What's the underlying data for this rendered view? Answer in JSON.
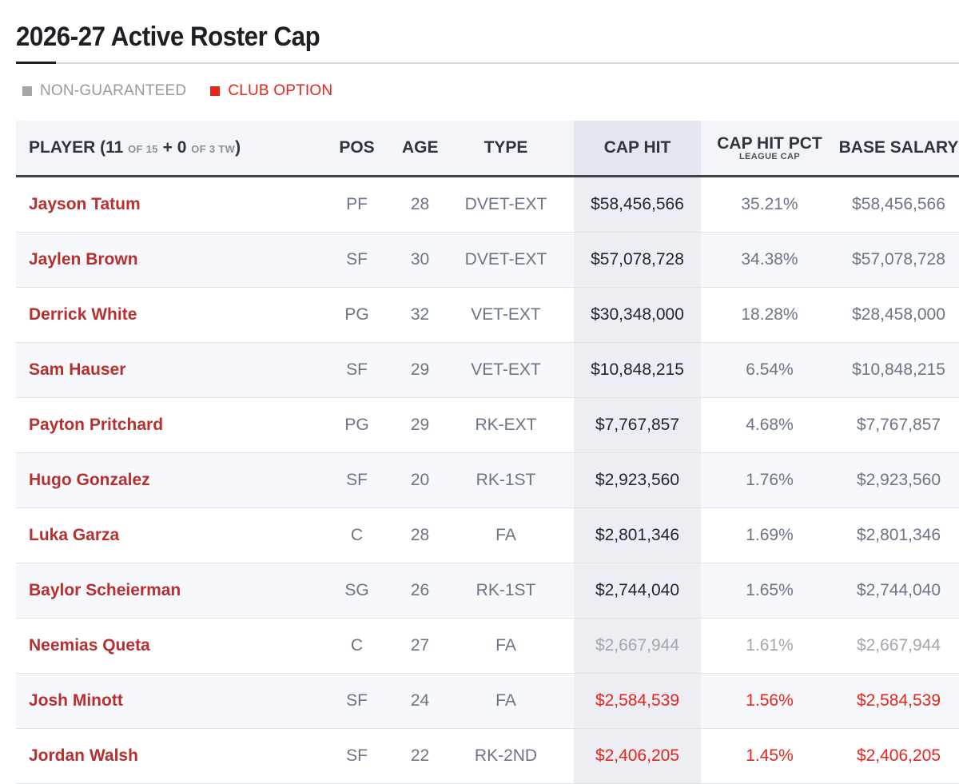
{
  "page_title": "2026-27 Active Roster Cap",
  "legend": {
    "non_guaranteed": "NON-GUARANTEED",
    "club_option": "CLUB OPTION"
  },
  "colors": {
    "player_name": "#b72f2f",
    "club_option": "#e2261c",
    "non_guaranteed": "#a3a7ad",
    "header_rule": "#3a4453"
  },
  "table": {
    "headers": {
      "player_prefix": "PLAYER (",
      "active_count": "11",
      "active_of": "OF 15",
      "plus": "+",
      "tw_count": "0",
      "tw_of": "OF 3 TW",
      "player_suffix": ")",
      "pos": "POS",
      "age": "AGE",
      "type": "TYPE",
      "cap_hit": "CAP HIT",
      "cap_hit_pct": "CAP HIT PCT",
      "cap_hit_pct_sub": "LEAGUE CAP",
      "base_salary": "BASE SALARY"
    },
    "rows": [
      {
        "player": "Jayson Tatum",
        "pos": "PF",
        "age": "28",
        "type": "DVET-EXT",
        "cap_hit": "$58,456,566",
        "pct": "35.21%",
        "base": "$58,456,566",
        "status": ""
      },
      {
        "player": "Jaylen Brown",
        "pos": "SF",
        "age": "30",
        "type": "DVET-EXT",
        "cap_hit": "$57,078,728",
        "pct": "34.38%",
        "base": "$57,078,728",
        "status": ""
      },
      {
        "player": "Derrick White",
        "pos": "PG",
        "age": "32",
        "type": "VET-EXT",
        "cap_hit": "$30,348,000",
        "pct": "18.28%",
        "base": "$28,458,000",
        "status": ""
      },
      {
        "player": "Sam Hauser",
        "pos": "SF",
        "age": "29",
        "type": "VET-EXT",
        "cap_hit": "$10,848,215",
        "pct": "6.54%",
        "base": "$10,848,215",
        "status": ""
      },
      {
        "player": "Payton Pritchard",
        "pos": "PG",
        "age": "29",
        "type": "RK-EXT",
        "cap_hit": "$7,767,857",
        "pct": "4.68%",
        "base": "$7,767,857",
        "status": ""
      },
      {
        "player": "Hugo Gonzalez",
        "pos": "SF",
        "age": "20",
        "type": "RK-1ST",
        "cap_hit": "$2,923,560",
        "pct": "1.76%",
        "base": "$2,923,560",
        "status": ""
      },
      {
        "player": "Luka Garza",
        "pos": "C",
        "age": "28",
        "type": "FA",
        "cap_hit": "$2,801,346",
        "pct": "1.69%",
        "base": "$2,801,346",
        "status": ""
      },
      {
        "player": "Baylor Scheierman",
        "pos": "SG",
        "age": "26",
        "type": "RK-1ST",
        "cap_hit": "$2,744,040",
        "pct": "1.65%",
        "base": "$2,744,040",
        "status": ""
      },
      {
        "player": "Neemias Queta",
        "pos": "C",
        "age": "27",
        "type": "FA",
        "cap_hit": "$2,667,944",
        "pct": "1.61%",
        "base": "$2,667,944",
        "status": "ng"
      },
      {
        "player": "Josh Minott",
        "pos": "SF",
        "age": "24",
        "type": "FA",
        "cap_hit": "$2,584,539",
        "pct": "1.56%",
        "base": "$2,584,539",
        "status": "co"
      },
      {
        "player": "Jordan Walsh",
        "pos": "SF",
        "age": "22",
        "type": "RK-2ND",
        "cap_hit": "$2,406,205",
        "pct": "1.45%",
        "base": "$2,406,205",
        "status": "co"
      }
    ]
  }
}
